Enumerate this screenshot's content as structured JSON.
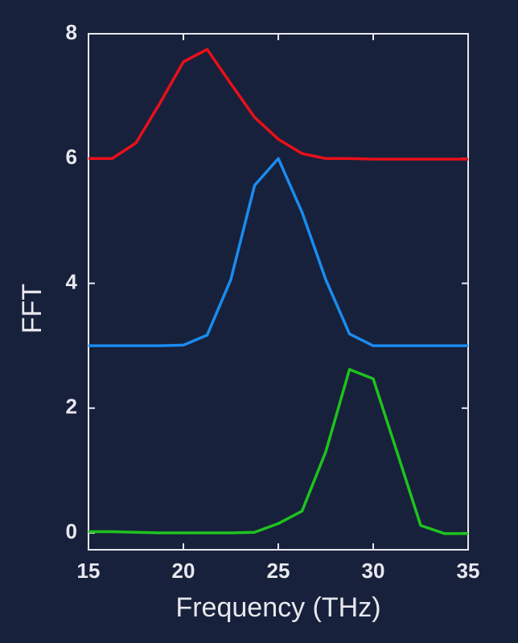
{
  "chart_data": {
    "type": "line",
    "xlabel": "Frequency (THz)",
    "ylabel": "FFT",
    "x": [
      15,
      16.25,
      17.5,
      18.75,
      20,
      21.25,
      22.5,
      23.75,
      25,
      26.25,
      27.5,
      28.75,
      30,
      31.25,
      32.5,
      33.75,
      35
    ],
    "series": [
      {
        "name": "red",
        "color": "#e8101a",
        "values": [
          6.0,
          6.0,
          6.25,
          6.88,
          7.55,
          7.75,
          7.2,
          6.66,
          6.31,
          6.08,
          6.0,
          6.0,
          5.99,
          5.99,
          5.99,
          5.99,
          5.99
        ]
      },
      {
        "name": "blue",
        "color": "#1a8cf0",
        "values": [
          3.0,
          3.0,
          3.0,
          3.0,
          3.01,
          3.17,
          4.06,
          5.57,
          6.0,
          5.14,
          4.06,
          3.19,
          3.0,
          3.0,
          3.0,
          3.0,
          3.0
        ]
      },
      {
        "name": "green",
        "color": "#1ec21e",
        "values": [
          0.02,
          0.02,
          0.01,
          0.0,
          0.0,
          0.0,
          0.0,
          0.01,
          0.15,
          0.35,
          1.3,
          2.62,
          2.47,
          1.3,
          0.12,
          -0.01,
          -0.01
        ]
      }
    ],
    "xlim": [
      15,
      35
    ],
    "xticks": [
      15,
      20,
      25,
      30,
      35
    ],
    "ylim": [
      -0.27,
      8.0
    ],
    "yticks": [
      0,
      2,
      4,
      6,
      8
    ]
  }
}
